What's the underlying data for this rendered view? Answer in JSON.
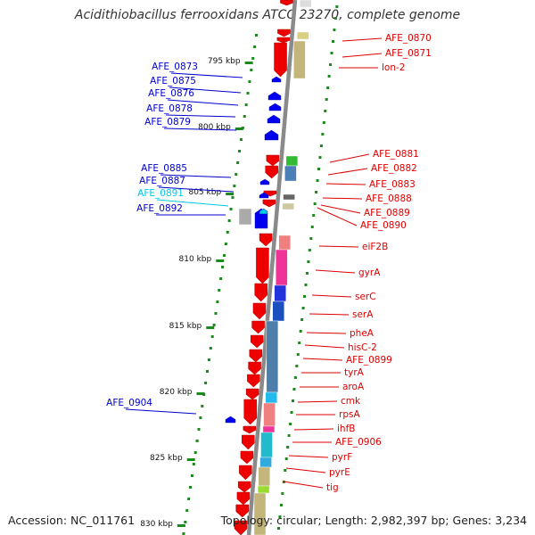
{
  "title": "Acidithiobacillus ferrooxidans ATCC 23270, complete genome",
  "footer": {
    "accession": "Accession: NC_011761",
    "summary": "Topology: circular; Length: 2,982,397 bp; Genes: 3,234"
  },
  "colors": {
    "backbone": "#8a8a8a",
    "tick": "#1a8a1a",
    "plus_gene": "#0000ee",
    "minus_gene": "#ee0000",
    "highlight_label": "#00c8e6"
  },
  "scale_labels": [
    "795 kbp",
    "800 kbp",
    "805 kbp",
    "810 kbp",
    "815 kbp",
    "820 kbp",
    "825 kbp",
    "830 kbp"
  ],
  "left_labels": [
    {
      "text": "AFE_0873",
      "color": "#0000cc"
    },
    {
      "text": "AFE_0875",
      "color": "#0000cc"
    },
    {
      "text": "AFE_0876",
      "color": "#0000cc"
    },
    {
      "text": "AFE_0878",
      "color": "#0000cc"
    },
    {
      "text": "AFE_0879",
      "color": "#0000cc"
    },
    {
      "text": "AFE_0885",
      "color": "#0000cc"
    },
    {
      "text": "AFE_0887",
      "color": "#0000cc"
    },
    {
      "text": "AFE_0891",
      "color": "#00c8e6"
    },
    {
      "text": "AFE_0892",
      "color": "#0000cc"
    },
    {
      "text": "AFE_0904",
      "color": "#0000cc"
    }
  ],
  "right_labels": [
    "AFE_0870",
    "AFE_0871",
    "lon-2",
    "AFE_0881",
    "AFE_0882",
    "AFE_0883",
    "AFE_0888",
    "AFE_0889",
    "AFE_0890",
    "eiF2B",
    "gyrA",
    "serC",
    "serA",
    "pheA",
    "hisC-2",
    "AFE_0899",
    "tyrA",
    "aroA",
    "cmk",
    "rpsA",
    "ihfB",
    "AFE_0906",
    "pyrF",
    "pyrE",
    "tig"
  ],
  "label_color_right": "#dd0000"
}
